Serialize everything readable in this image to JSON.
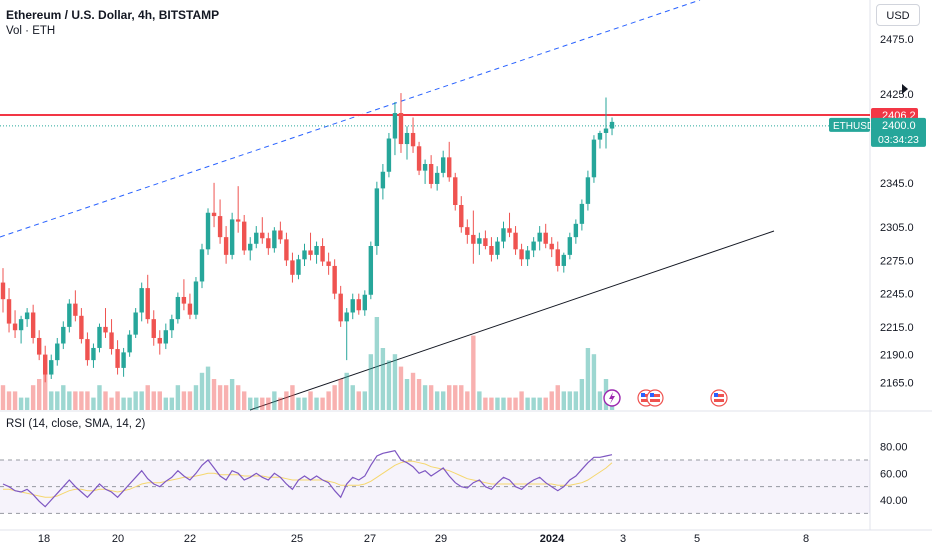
{
  "header": {
    "title": "Ethereum / U.S. Dollar, 4h, BITSTAMP",
    "volume_label": "Vol · ETH",
    "currency_button": "USD"
  },
  "price_axis": {
    "ticks": [
      "2475.0",
      "2425.0",
      "2345.0",
      "2305.0",
      "2275.0",
      "2245.0",
      "2215.0",
      "2190.0",
      "2165.0"
    ],
    "resistance_label": "2406.2",
    "symbol_label": "ETHUSD",
    "last_price_label": "2400.0",
    "countdown_label": "03:34:23"
  },
  "rsi": {
    "label": "RSI (14, close, SMA, 14, 2)",
    "ticks": [
      "80.00",
      "60.00",
      "40.00"
    ]
  },
  "time_axis": {
    "ticks": [
      "18",
      "20",
      "22",
      "25",
      "27",
      "29",
      "2024",
      "3",
      "5",
      "8"
    ]
  },
  "colors": {
    "up": "#26a69a",
    "down": "#ef5350",
    "resistance": "#f23645",
    "rsi_line": "#7e57c2",
    "rsi_ma": "#f5d76e",
    "trend_upper": "#2962ff",
    "trend_lower": "#131722"
  },
  "chart_data": {
    "type": "candlestick",
    "symbol": "ETHUSD",
    "interval": "4h",
    "price_range": [
      2140,
      2510
    ],
    "resistance_level": 2406.2,
    "last_price": 2400.0,
    "rsi_range": [
      28,
      85
    ],
    "rsi_levels": [
      70,
      50,
      30
    ],
    "candles_ohlc_v": [
      [
        2255,
        2268,
        2228,
        2240,
        0.4
      ],
      [
        2240,
        2250,
        2210,
        2218,
        0.3
      ],
      [
        2218,
        2230,
        2205,
        2212,
        0.3
      ],
      [
        2212,
        2225,
        2200,
        2222,
        0.2
      ],
      [
        2222,
        2232,
        2215,
        2228,
        0.2
      ],
      [
        2228,
        2235,
        2200,
        2205,
        0.4
      ],
      [
        2205,
        2212,
        2185,
        2190,
        0.5
      ],
      [
        2190,
        2198,
        2165,
        2172,
        0.6
      ],
      [
        2172,
        2190,
        2168,
        2185,
        0.3
      ],
      [
        2185,
        2205,
        2180,
        2200,
        0.3
      ],
      [
        2200,
        2220,
        2195,
        2215,
        0.4
      ],
      [
        2215,
        2240,
        2210,
        2236,
        0.3
      ],
      [
        2236,
        2248,
        2220,
        2225,
        0.3
      ],
      [
        2225,
        2232,
        2200,
        2204,
        0.3
      ],
      [
        2204,
        2210,
        2180,
        2185,
        0.3
      ],
      [
        2185,
        2200,
        2178,
        2196,
        0.2
      ],
      [
        2196,
        2218,
        2192,
        2215,
        0.4
      ],
      [
        2215,
        2232,
        2205,
        2210,
        0.3
      ],
      [
        2210,
        2222,
        2190,
        2195,
        0.2
      ],
      [
        2195,
        2203,
        2172,
        2178,
        0.3
      ],
      [
        2178,
        2196,
        2170,
        2192,
        0.2
      ],
      [
        2192,
        2212,
        2188,
        2208,
        0.2
      ],
      [
        2208,
        2232,
        2205,
        2228,
        0.3
      ],
      [
        2228,
        2255,
        2220,
        2250,
        0.3
      ],
      [
        2250,
        2262,
        2218,
        2222,
        0.4
      ],
      [
        2222,
        2230,
        2198,
        2205,
        0.3
      ],
      [
        2205,
        2212,
        2190,
        2200,
        0.3
      ],
      [
        2200,
        2218,
        2195,
        2212,
        0.2
      ],
      [
        2212,
        2226,
        2205,
        2222,
        0.2
      ],
      [
        2222,
        2246,
        2218,
        2242,
        0.4
      ],
      [
        2242,
        2258,
        2230,
        2236,
        0.3
      ],
      [
        2236,
        2245,
        2222,
        2226,
        0.3
      ],
      [
        2226,
        2260,
        2222,
        2256,
        0.4
      ],
      [
        2256,
        2290,
        2250,
        2285,
        0.6
      ],
      [
        2285,
        2322,
        2280,
        2318,
        0.7
      ],
      [
        2318,
        2345,
        2305,
        2315,
        0.5
      ],
      [
        2315,
        2330,
        2290,
        2296,
        0.4
      ],
      [
        2296,
        2306,
        2272,
        2280,
        0.4
      ],
      [
        2280,
        2318,
        2276,
        2312,
        0.5
      ],
      [
        2312,
        2342,
        2300,
        2310,
        0.4
      ],
      [
        2310,
        2316,
        2280,
        2284,
        0.3
      ],
      [
        2284,
        2296,
        2275,
        2290,
        0.2
      ],
      [
        2290,
        2306,
        2286,
        2300,
        0.2
      ],
      [
        2300,
        2314,
        2290,
        2295,
        0.2
      ],
      [
        2295,
        2300,
        2280,
        2286,
        0.2
      ],
      [
        2286,
        2305,
        2282,
        2302,
        0.3
      ],
      [
        2302,
        2310,
        2290,
        2294,
        0.2
      ],
      [
        2294,
        2300,
        2270,
        2275,
        0.3
      ],
      [
        2275,
        2282,
        2255,
        2262,
        0.4
      ],
      [
        2262,
        2280,
        2258,
        2276,
        0.2
      ],
      [
        2276,
        2290,
        2270,
        2284,
        0.2
      ],
      [
        2284,
        2300,
        2275,
        2280,
        0.3
      ],
      [
        2280,
        2292,
        2272,
        2288,
        0.2
      ],
      [
        2288,
        2295,
        2270,
        2274,
        0.2
      ],
      [
        2274,
        2282,
        2262,
        2270,
        0.3
      ],
      [
        2270,
        2276,
        2240,
        2245,
        0.4
      ],
      [
        2245,
        2252,
        2215,
        2220,
        0.5
      ],
      [
        2220,
        2232,
        2185,
        2228,
        0.6
      ],
      [
        2228,
        2245,
        2222,
        2240,
        0.4
      ],
      [
        2240,
        2245,
        2226,
        2230,
        0.3
      ],
      [
        2230,
        2248,
        2225,
        2244,
        0.3
      ],
      [
        2244,
        2292,
        2240,
        2288,
        0.9
      ],
      [
        2288,
        2346,
        2280,
        2340,
        1.5
      ],
      [
        2340,
        2362,
        2330,
        2355,
        1.0
      ],
      [
        2355,
        2390,
        2350,
        2385,
        0.8
      ],
      [
        2385,
        2418,
        2370,
        2408,
        0.9
      ],
      [
        2408,
        2426,
        2372,
        2380,
        0.7
      ],
      [
        2380,
        2396,
        2366,
        2390,
        0.5
      ],
      [
        2390,
        2404,
        2372,
        2378,
        0.6
      ],
      [
        2378,
        2382,
        2352,
        2356,
        0.5
      ],
      [
        2356,
        2366,
        2344,
        2362,
        0.4
      ],
      [
        2362,
        2370,
        2340,
        2344,
        0.4
      ],
      [
        2344,
        2360,
        2338,
        2354,
        0.3
      ],
      [
        2354,
        2374,
        2350,
        2368,
        0.3
      ],
      [
        2368,
        2382,
        2346,
        2350,
        0.4
      ],
      [
        2350,
        2354,
        2320,
        2325,
        0.4
      ],
      [
        2325,
        2333,
        2300,
        2305,
        0.4
      ],
      [
        2305,
        2312,
        2290,
        2298,
        0.3
      ],
      [
        2298,
        2320,
        2272,
        2290,
        1.2
      ],
      [
        2290,
        2300,
        2280,
        2295,
        0.3
      ],
      [
        2295,
        2302,
        2285,
        2288,
        0.2
      ],
      [
        2288,
        2296,
        2274,
        2280,
        0.2
      ],
      [
        2280,
        2296,
        2276,
        2292,
        0.2
      ],
      [
        2292,
        2310,
        2286,
        2304,
        0.2
      ],
      [
        2304,
        2318,
        2296,
        2300,
        0.2
      ],
      [
        2300,
        2306,
        2280,
        2285,
        0.2
      ],
      [
        2285,
        2290,
        2270,
        2276,
        0.3
      ],
      [
        2276,
        2288,
        2270,
        2284,
        0.2
      ],
      [
        2284,
        2296,
        2278,
        2292,
        0.2
      ],
      [
        2292,
        2306,
        2284,
        2300,
        0.2
      ],
      [
        2300,
        2308,
        2286,
        2290,
        0.2
      ],
      [
        2290,
        2296,
        2278,
        2285,
        0.3
      ],
      [
        2285,
        2292,
        2265,
        2270,
        0.4
      ],
      [
        2270,
        2282,
        2264,
        2280,
        0.3
      ],
      [
        2280,
        2300,
        2276,
        2296,
        0.3
      ],
      [
        2296,
        2312,
        2290,
        2308,
        0.3
      ],
      [
        2308,
        2330,
        2302,
        2326,
        0.5
      ],
      [
        2326,
        2356,
        2320,
        2350,
        1.0
      ],
      [
        2350,
        2388,
        2345,
        2384,
        0.9
      ],
      [
        2384,
        2392,
        2376,
        2390,
        0.3
      ],
      [
        2390,
        2422,
        2376,
        2394,
        0.5
      ],
      [
        2394,
        2404,
        2388,
        2400,
        0.2
      ]
    ],
    "rsi": [
      52,
      50,
      47,
      46,
      48,
      44,
      39,
      35,
      40,
      45,
      50,
      55,
      50,
      46,
      42,
      47,
      52,
      48,
      46,
      42,
      47,
      52,
      57,
      62,
      56,
      52,
      50,
      54,
      57,
      62,
      58,
      55,
      60,
      66,
      70,
      64,
      58,
      55,
      62,
      60,
      55,
      57,
      60,
      57,
      55,
      60,
      57,
      52,
      48,
      55,
      58,
      55,
      58,
      55,
      53,
      47,
      42,
      52,
      57,
      55,
      58,
      66,
      73,
      75,
      76,
      77,
      70,
      68,
      65,
      60,
      62,
      58,
      61,
      64,
      58,
      53,
      50,
      49,
      53,
      55,
      50,
      48,
      53,
      57,
      55,
      50,
      48,
      52,
      55,
      57,
      53,
      50,
      47,
      50,
      55,
      58,
      63,
      68,
      72,
      72,
      73,
      74
    ],
    "rsi_ma": [
      48,
      48,
      47,
      46,
      45,
      44,
      43,
      42,
      42,
      43,
      45,
      47,
      48,
      48,
      47,
      47,
      48,
      48,
      47,
      46,
      47,
      48,
      50,
      52,
      53,
      53,
      53,
      54,
      55,
      56,
      57,
      57,
      58,
      59,
      60,
      60,
      59,
      59,
      59,
      59,
      58,
      58,
      58,
      58,
      57,
      57,
      57,
      56,
      55,
      55,
      55,
      55,
      55,
      55,
      54,
      53,
      51,
      51,
      51,
      51,
      52,
      54,
      57,
      60,
      63,
      66,
      68,
      69,
      69,
      68,
      67,
      65,
      64,
      63,
      62,
      60,
      58,
      56,
      55,
      54,
      53,
      52,
      52,
      52,
      52,
      52,
      52,
      52,
      52,
      52,
      52,
      52,
      51,
      51,
      51,
      52,
      53,
      55,
      58,
      61,
      64,
      68
    ]
  }
}
